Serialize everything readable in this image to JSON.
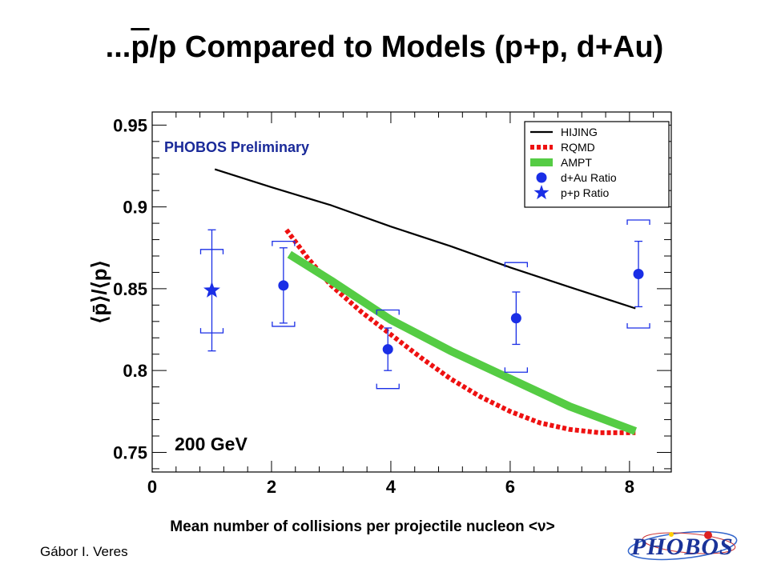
{
  "slide": {
    "title_prefix": "...",
    "title_pbar": "p",
    "title_rest": "/p Compared to Models (p+p, d+Au)",
    "author": "Gábor I. Veres",
    "logo_text": "PHOBOS"
  },
  "chart_data": {
    "type": "scatter",
    "title": "...p̄/p Compared to Models (p+p, d+Au)",
    "xlabel": "Mean number of collisions per projectile nucleon <ν>",
    "ylabel": "⟨p̄⟩/⟨p⟩",
    "xlim": [
      0,
      8.7
    ],
    "ylim": [
      0.738,
      0.958
    ],
    "x_ticks": [
      "0",
      "2",
      "4",
      "6",
      "8"
    ],
    "y_ticks": [
      "0.75",
      "0.8",
      "0.85",
      "0.9",
      "0.95"
    ],
    "annotations": [
      "PHOBOS Preliminary",
      "200 GeV"
    ],
    "legend_position": "top-right",
    "series": [
      {
        "name": "HIJING",
        "kind": "line",
        "color": "#000000",
        "x": [
          1.05,
          2.0,
          3.0,
          4.0,
          5.0,
          6.0,
          7.0,
          8.1
        ],
        "y": [
          0.923,
          0.912,
          0.901,
          0.888,
          0.876,
          0.863,
          0.851,
          0.838
        ]
      },
      {
        "name": "RQMD",
        "kind": "dashed",
        "color": "#ee1111",
        "x": [
          2.25,
          2.6,
          3.0,
          3.5,
          4.0,
          4.5,
          5.0,
          5.5,
          6.0,
          6.5,
          7.0,
          7.5,
          8.1
        ],
        "y": [
          0.886,
          0.869,
          0.852,
          0.836,
          0.822,
          0.808,
          0.795,
          0.784,
          0.775,
          0.768,
          0.764,
          0.762,
          0.762
        ]
      },
      {
        "name": "AMPT",
        "kind": "thick",
        "color": "#55cc44",
        "x": [
          2.3,
          3.0,
          4.0,
          5.0,
          6.0,
          7.0,
          8.1
        ],
        "y": [
          0.871,
          0.855,
          0.831,
          0.812,
          0.795,
          0.778,
          0.763
        ]
      },
      {
        "name": "d+Au Ratio",
        "kind": "points",
        "marker": "circle",
        "color": "#1a2ee6",
        "x": [
          2.2,
          3.95,
          6.1,
          8.15
        ],
        "y": [
          0.852,
          0.813,
          0.832,
          0.859
        ],
        "err_y": [
          0.023,
          0.013,
          0.016,
          0.02
        ],
        "sys_low": [
          0.827,
          0.789,
          0.799,
          0.826
        ],
        "sys_high": [
          0.879,
          0.837,
          0.866,
          0.892
        ]
      },
      {
        "name": "p+p Ratio",
        "kind": "points",
        "marker": "star",
        "color": "#1a2ee6",
        "x": [
          1.0
        ],
        "y": [
          0.849
        ],
        "err_y": [
          0.037
        ],
        "sys_low": [
          0.823
        ],
        "sys_high": [
          0.874
        ]
      }
    ]
  }
}
